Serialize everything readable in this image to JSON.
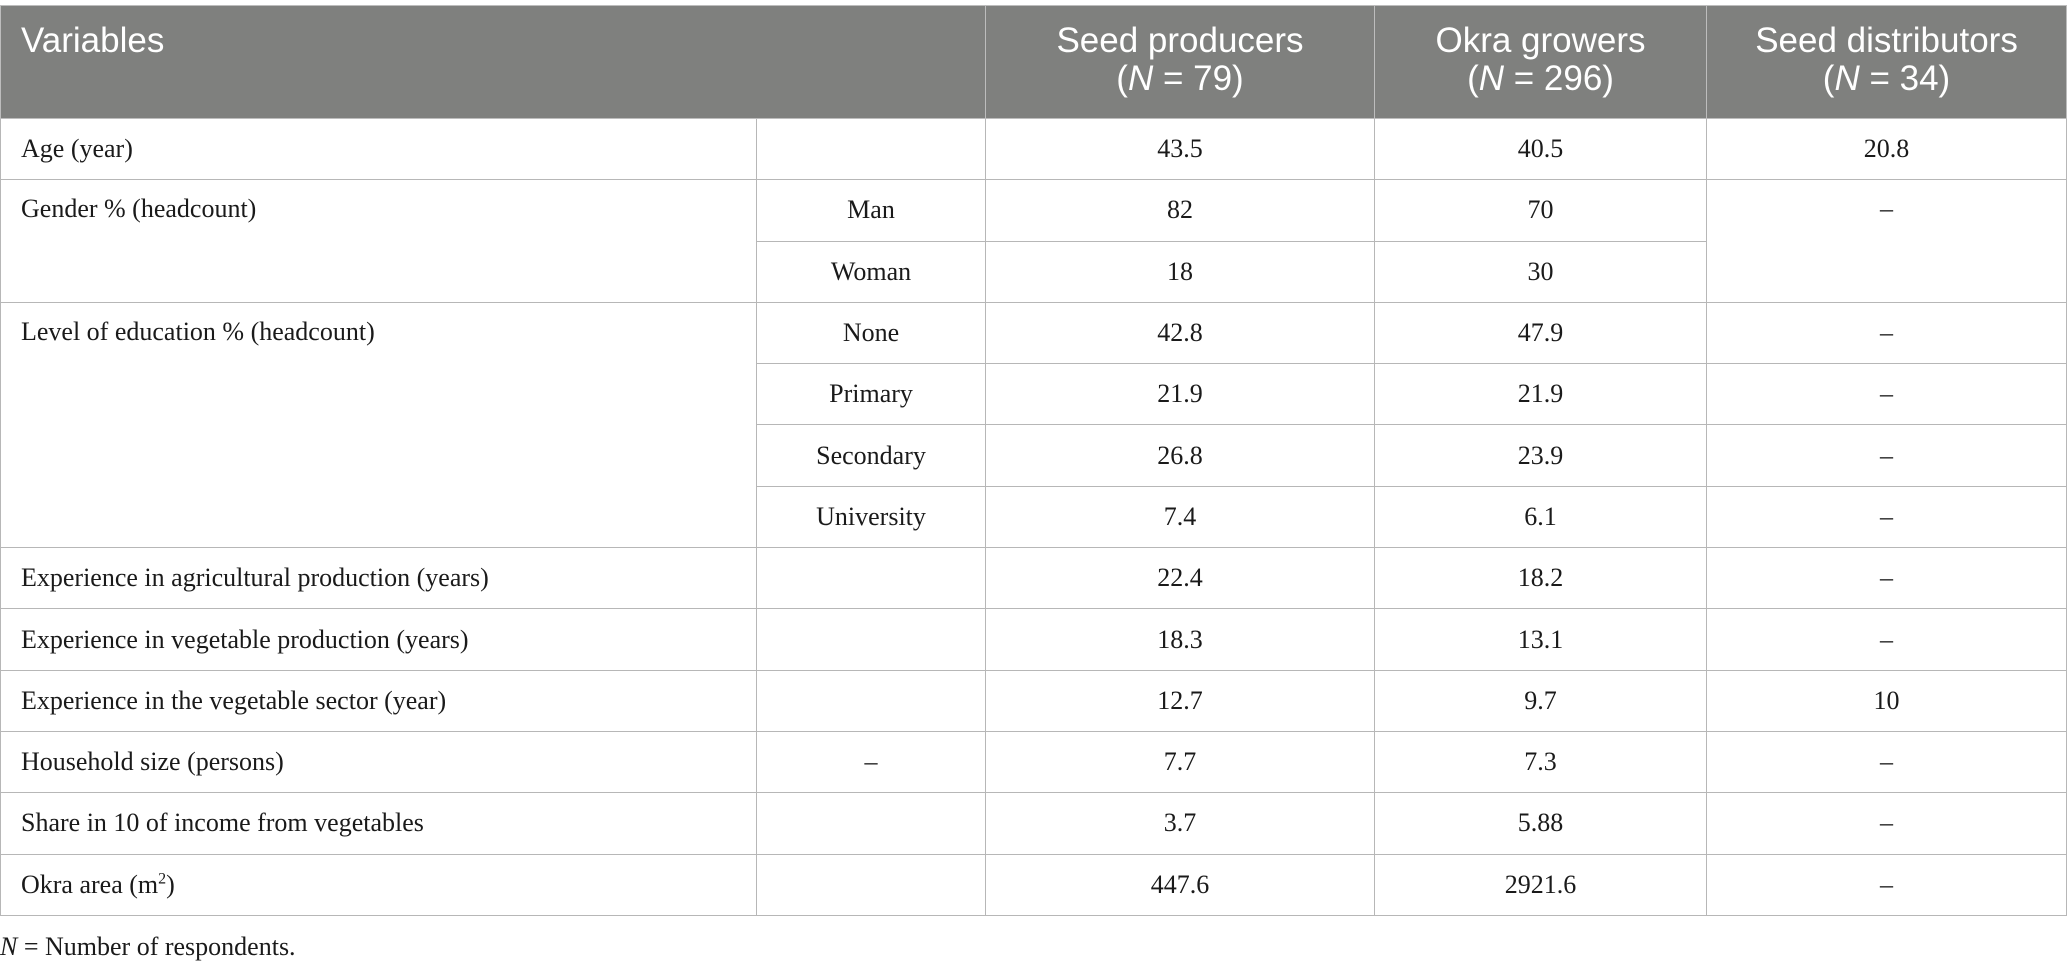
{
  "header": {
    "variables": "Variables",
    "seed_producers": "Seed producers",
    "seed_producers_n_label": "N",
    "seed_producers_n_value": " = 79)",
    "okra_growers": "Okra growers",
    "okra_growers_n_label": "N",
    "okra_growers_n_value": " = 296)",
    "seed_distributors": "Seed distributors",
    "seed_distributors_n_label": "N",
    "seed_distributors_n_value": " = 34)",
    "open_paren": "("
  },
  "rows": {
    "age": {
      "label": "Age (year)",
      "sub": "",
      "producers": "43.5",
      "growers": "40.5",
      "distributors": "20.8"
    },
    "gender": {
      "label": "Gender % (headcount)",
      "distributors": "–",
      "man": {
        "sub": "Man",
        "producers": "82",
        "growers": "70"
      },
      "woman": {
        "sub": "Woman",
        "producers": "18",
        "growers": "30"
      }
    },
    "education": {
      "label": "Level of education % (headcount)",
      "none": {
        "sub": "None",
        "producers": "42.8",
        "growers": "47.9",
        "distributors": "–"
      },
      "primary": {
        "sub": "Primary",
        "producers": "21.9",
        "growers": "21.9",
        "distributors": "–"
      },
      "secondary": {
        "sub": "Secondary",
        "producers": "26.8",
        "growers": "23.9",
        "distributors": "–"
      },
      "university": {
        "sub": "University",
        "producers": "7.4",
        "growers": "6.1",
        "distributors": "–"
      }
    },
    "exp_agri": {
      "label": "Experience in agricultural production (years)",
      "sub": "",
      "producers": "22.4",
      "growers": "18.2",
      "distributors": "–"
    },
    "exp_veg": {
      "label": "Experience in vegetable production (years)",
      "sub": "",
      "producers": "18.3",
      "growers": "13.1",
      "distributors": "–"
    },
    "exp_sector": {
      "label": "Experience in the vegetable sector (year)",
      "sub": "",
      "producers": "12.7",
      "growers": "9.7",
      "distributors": "10"
    },
    "household": {
      "label": "Household size (persons)",
      "sub": "–",
      "producers": "7.7",
      "growers": "7.3",
      "distributors": "–"
    },
    "income_share": {
      "label": "Share in 10 of income from vegetables",
      "sub": "",
      "producers": "3.7",
      "growers": "5.88",
      "distributors": "–"
    },
    "okra_area": {
      "label": "Okra area (m",
      "label_sup": "2",
      "label_end": ")",
      "sub": "",
      "producers": "447.6",
      "growers": "2921.6",
      "distributors": "–"
    }
  },
  "footnote": {
    "n": "N",
    "text": " = Number of respondents."
  }
}
